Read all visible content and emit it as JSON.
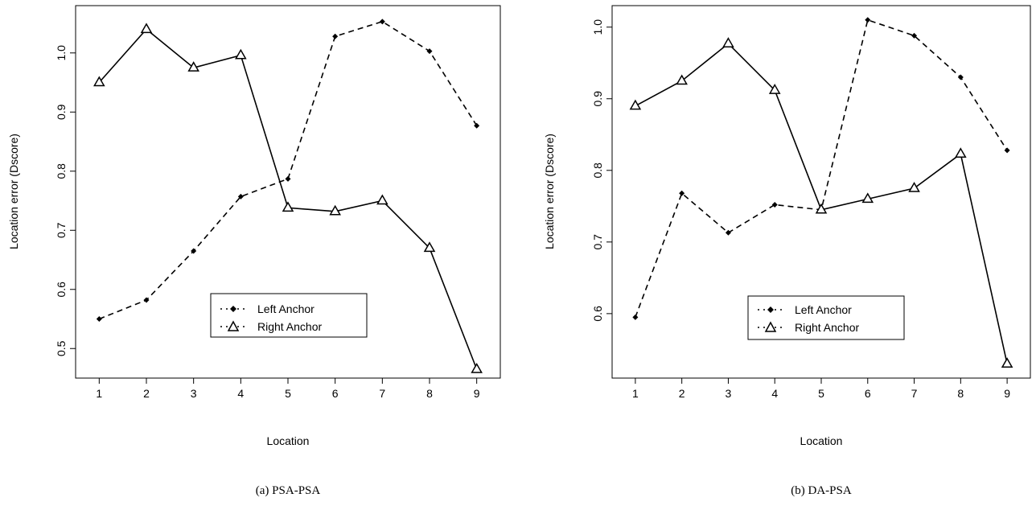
{
  "chart_data": [
    {
      "type": "line",
      "caption": "(a) PSA-PSA",
      "xlabel": "Location",
      "ylabel": "Location error (Dscore)",
      "x": [
        1,
        2,
        3,
        4,
        5,
        6,
        7,
        8,
        9
      ],
      "x_ticks": [
        "1",
        "2",
        "3",
        "4",
        "5",
        "6",
        "7",
        "8",
        "9"
      ],
      "y_ticks": [
        "0.5",
        "0.6",
        "0.7",
        "0.8",
        "0.9",
        "1.0"
      ],
      "xlim": [
        0.5,
        9.5
      ],
      "ylim": [
        0.45,
        1.08
      ],
      "legend_position": "bottom-center",
      "series": [
        {
          "name": "Left Anchor",
          "marker": "diamond",
          "line": "dashed",
          "values": [
            0.55,
            0.582,
            0.665,
            0.757,
            0.787,
            1.028,
            1.053,
            1.003,
            0.877
          ]
        },
        {
          "name": "Right Anchor",
          "marker": "triangle",
          "line": "solid",
          "values": [
            0.95,
            1.04,
            0.975,
            0.996,
            0.738,
            0.732,
            0.75,
            0.67,
            0.465
          ]
        }
      ]
    },
    {
      "type": "line",
      "caption": "(b) DA-PSA",
      "xlabel": "Location",
      "ylabel": "Location error (Dscore)",
      "x": [
        1,
        2,
        3,
        4,
        5,
        6,
        7,
        8,
        9
      ],
      "x_ticks": [
        "1",
        "2",
        "3",
        "4",
        "5",
        "6",
        "7",
        "8",
        "9"
      ],
      "y_ticks": [
        "0.6",
        "0.7",
        "0.8",
        "0.9",
        "1.0"
      ],
      "xlim": [
        0.5,
        9.5
      ],
      "ylim": [
        0.51,
        1.03
      ],
      "legend_position": "bottom-center",
      "series": [
        {
          "name": "Left Anchor",
          "marker": "diamond",
          "line": "dashed",
          "values": [
            0.595,
            0.768,
            0.713,
            0.752,
            0.745,
            1.01,
            0.988,
            0.93,
            0.828
          ]
        },
        {
          "name": "Right Anchor",
          "marker": "triangle",
          "line": "solid",
          "values": [
            0.89,
            0.925,
            0.977,
            0.912,
            0.745,
            0.76,
            0.775,
            0.823,
            0.53
          ]
        }
      ]
    }
  ]
}
